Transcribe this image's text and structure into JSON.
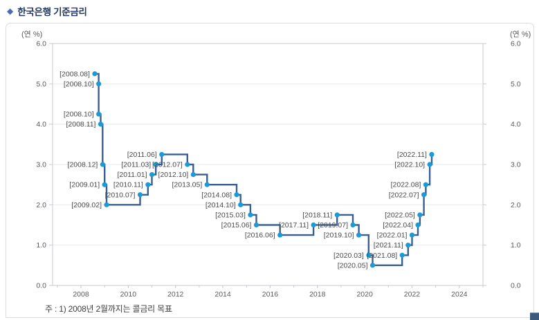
{
  "header": {
    "bullet": "◆",
    "title": "한국은행 기준금리"
  },
  "panel": {
    "note": "주 : 1) 2008년 2월까지는 콜금리 목표"
  },
  "chart_data": {
    "type": "line",
    "step": true,
    "title": "한국은행 기준금리",
    "unit_label_left": "(연 %)",
    "unit_label_right": "(연 %)",
    "xlabel": "",
    "ylabel": "(연 %)",
    "xlim": [
      2006.8,
      2025.0
    ],
    "ylim": [
      0,
      6
    ],
    "x_ticks": [
      2008,
      2010,
      2012,
      2014,
      2016,
      2018,
      2020,
      2022,
      2024
    ],
    "y_ticks": [
      0.0,
      1.0,
      2.0,
      3.0,
      4.0,
      5.0,
      6.0
    ],
    "grid": "horizontal",
    "legend_position": "none",
    "point_label_format": "[{date}]",
    "series": [
      {
        "name": "기준금리",
        "points": [
          {
            "date": "2008.08",
            "value": 5.25
          },
          {
            "date": "2008.10",
            "value": 5.0
          },
          {
            "date": "2008.10",
            "value": 4.25
          },
          {
            "date": "2008.11",
            "value": 4.0
          },
          {
            "date": "2008.12",
            "value": 3.0
          },
          {
            "date": "2009.01",
            "value": 2.5
          },
          {
            "date": "2009.02",
            "value": 2.0
          },
          {
            "date": "2010.07",
            "value": 2.25
          },
          {
            "date": "2010.11",
            "value": 2.5
          },
          {
            "date": "2011.01",
            "value": 2.75
          },
          {
            "date": "2011.03",
            "value": 3.0
          },
          {
            "date": "2011.06",
            "value": 3.25
          },
          {
            "date": "2012.07",
            "value": 3.0
          },
          {
            "date": "2012.10",
            "value": 2.75
          },
          {
            "date": "2013.05",
            "value": 2.5
          },
          {
            "date": "2014.08",
            "value": 2.25
          },
          {
            "date": "2014.10",
            "value": 2.0
          },
          {
            "date": "2015.03",
            "value": 1.75
          },
          {
            "date": "2015.06",
            "value": 1.5
          },
          {
            "date": "2016.06",
            "value": 1.25
          },
          {
            "date": "2017.11",
            "value": 1.5
          },
          {
            "date": "2018.11",
            "value": 1.75
          },
          {
            "date": "2019.07",
            "value": 1.5
          },
          {
            "date": "2019.10",
            "value": 1.25
          },
          {
            "date": "2020.03",
            "value": 0.75
          },
          {
            "date": "2020.05",
            "value": 0.5
          },
          {
            "date": "2021.08",
            "value": 0.75
          },
          {
            "date": "2021.11",
            "value": 1.0
          },
          {
            "date": "2022.01",
            "value": 1.25
          },
          {
            "date": "2022.04",
            "value": 1.5
          },
          {
            "date": "2022.05",
            "value": 1.75
          },
          {
            "date": "2022.07",
            "value": 2.25
          },
          {
            "date": "2022.08",
            "value": 2.5
          },
          {
            "date": "2022.10",
            "value": 3.0
          },
          {
            "date": "2022.11",
            "value": 3.25
          }
        ]
      }
    ],
    "colors": {
      "line": "#3a5e92",
      "marker": "#1b9ad5",
      "grid": "#e6e8ec",
      "axis": "#c6cad2",
      "tick_label": "#595959",
      "point_label": "#4a4a4a",
      "title": "#203864"
    }
  }
}
